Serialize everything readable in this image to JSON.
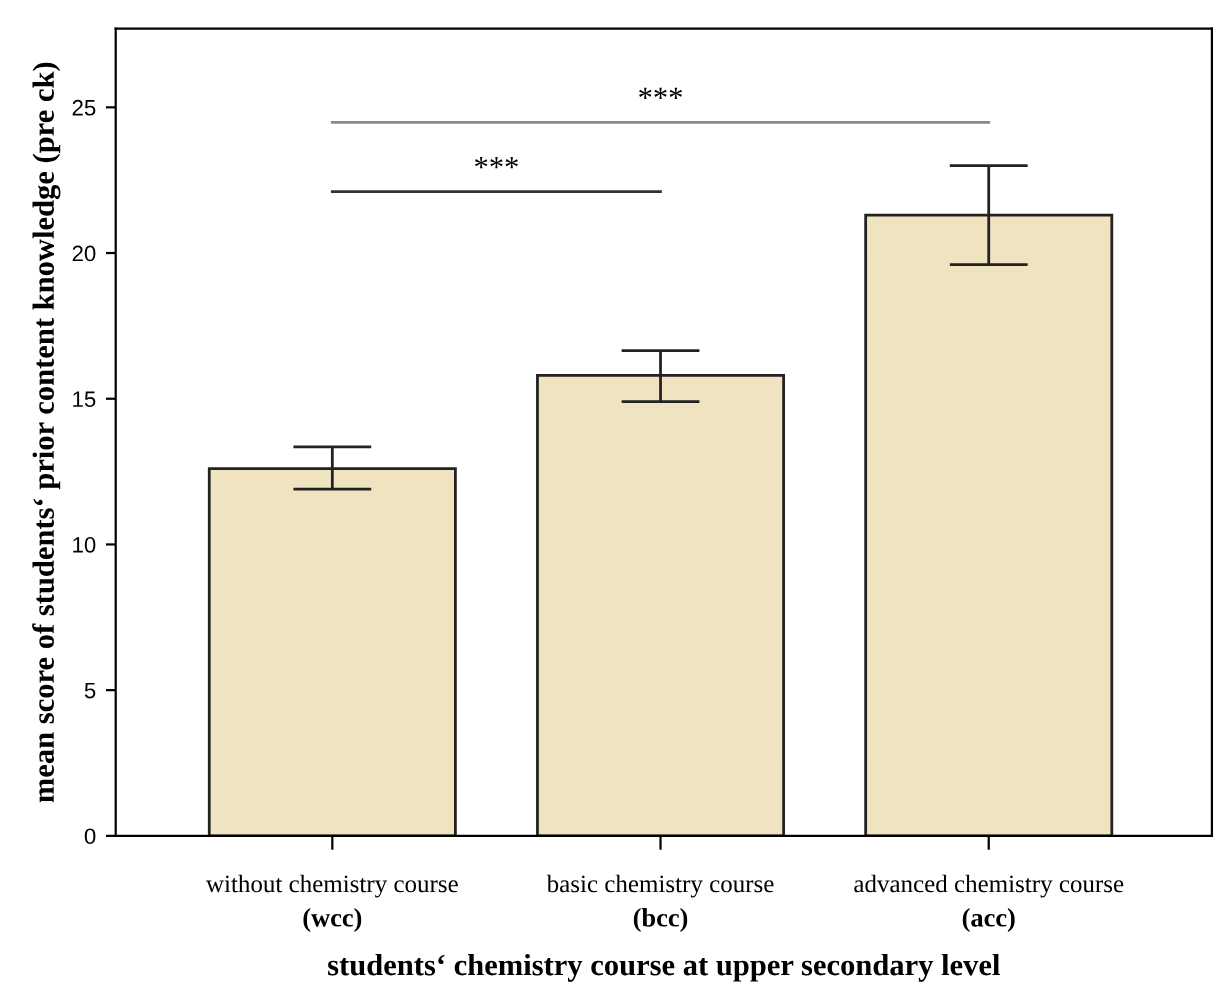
{
  "chart_data": {
    "type": "bar",
    "xlabel": "students‘ chemistry course at upper secondary level",
    "ylabel": "mean score of students‘ prior content knowledge (pre ck)",
    "categories": [
      "without chemistry course\n(wcc)",
      "basic chemistry course\n(bcc)",
      "advanced chemistry course\n(acc)"
    ],
    "values": [
      12.6,
      15.8,
      21.3
    ],
    "errors": [
      [
        11.9,
        13.35
      ],
      [
        14.9,
        16.65
      ],
      [
        19.6,
        23.0
      ]
    ],
    "color": "#f0e3c0",
    "ylim": [
      0,
      27.7
    ],
    "yticks": [
      0,
      5,
      10,
      15,
      20,
      25
    ],
    "grid": false,
    "legend": false,
    "annotations": [
      "***",
      "***"
    ]
  }
}
